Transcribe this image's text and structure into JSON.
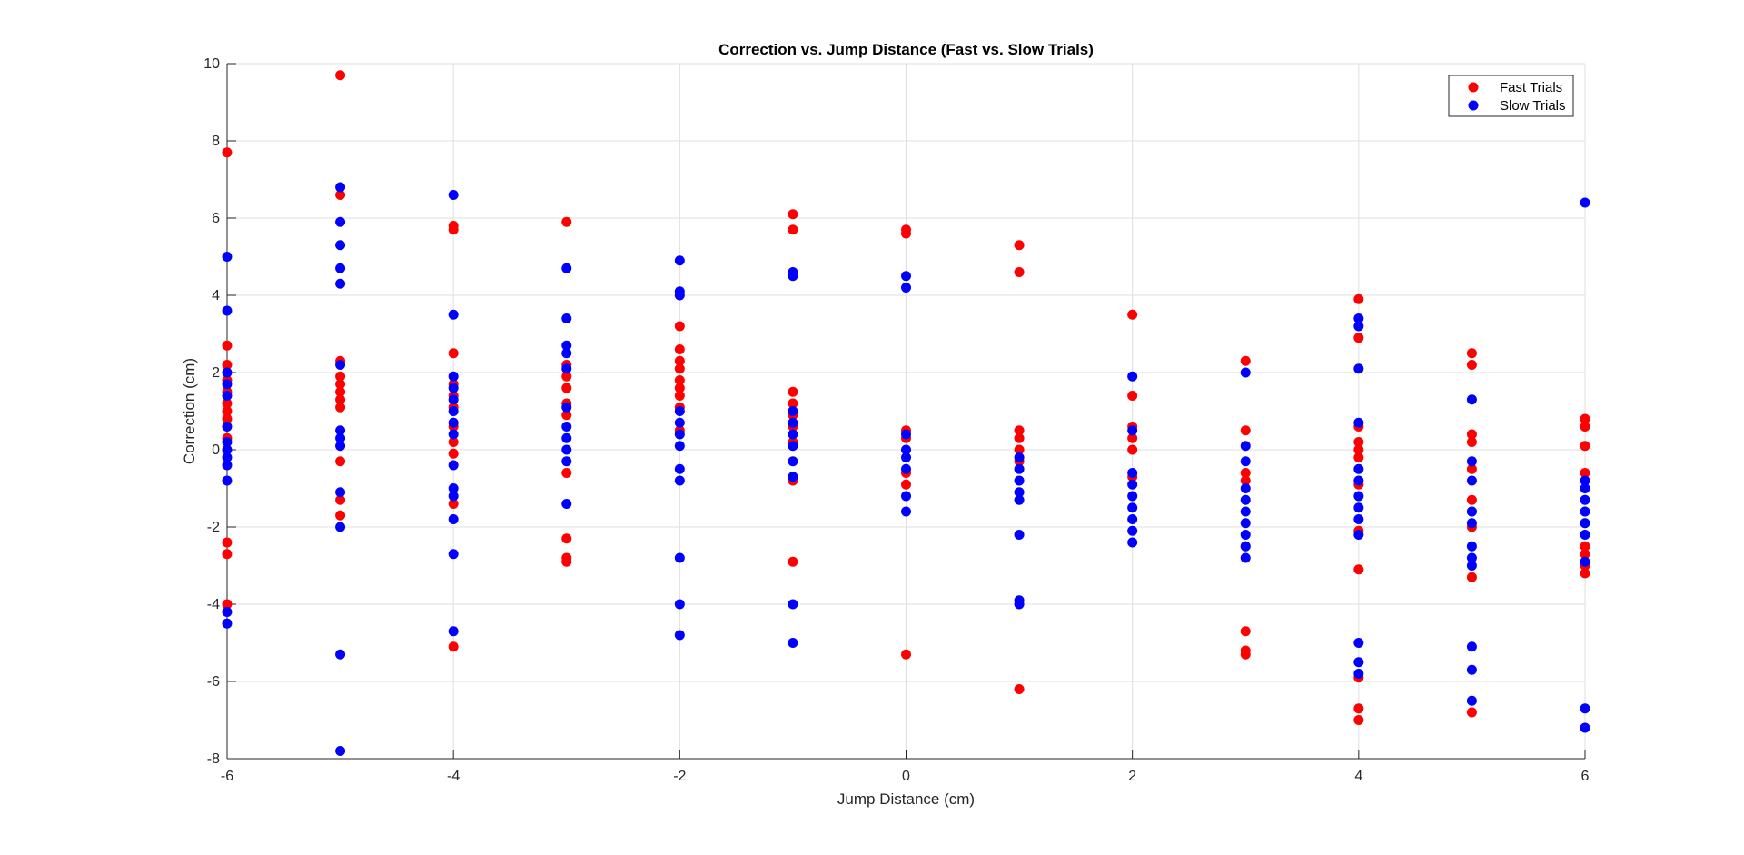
{
  "chart_data": {
    "type": "scatter",
    "title": "Correction vs. Jump Distance (Fast vs. Slow Trials)",
    "xlabel": "Jump Distance (cm)",
    "ylabel": "Correction (cm)",
    "xlim": [
      -6,
      6
    ],
    "ylim": [
      -8,
      10
    ],
    "xticks": [
      -6,
      -4,
      -2,
      0,
      2,
      4,
      6
    ],
    "yticks": [
      -8,
      -6,
      -4,
      -2,
      0,
      2,
      4,
      6,
      8,
      10
    ],
    "grid": true,
    "legend_position": "top-right",
    "series": [
      {
        "name": "Fast Trials",
        "color": "#ff0000",
        "points": [
          [
            -6,
            7.7
          ],
          [
            -6,
            2.7
          ],
          [
            -6,
            2.2
          ],
          [
            -6,
            1.8
          ],
          [
            -6,
            1.5
          ],
          [
            -6,
            1.2
          ],
          [
            -6,
            1.0
          ],
          [
            -6,
            0.8
          ],
          [
            -6,
            0.3
          ],
          [
            -6,
            -2.4
          ],
          [
            -6,
            -2.7
          ],
          [
            -6,
            -4.0
          ],
          [
            -5,
            9.7
          ],
          [
            -5,
            6.6
          ],
          [
            -5,
            2.3
          ],
          [
            -5,
            1.9
          ],
          [
            -5,
            1.7
          ],
          [
            -5,
            1.5
          ],
          [
            -5,
            1.3
          ],
          [
            -5,
            1.1
          ],
          [
            -5,
            -0.3
          ],
          [
            -5,
            -1.3
          ],
          [
            -5,
            -1.7
          ],
          [
            -4,
            5.8
          ],
          [
            -4,
            5.7
          ],
          [
            -4,
            2.5
          ],
          [
            -4,
            1.7
          ],
          [
            -4,
            1.4
          ],
          [
            -4,
            1.1
          ],
          [
            -4,
            0.6
          ],
          [
            -4,
            0.2
          ],
          [
            -4,
            -0.1
          ],
          [
            -4,
            -1.4
          ],
          [
            -4,
            -5.1
          ],
          [
            -3,
            5.9
          ],
          [
            -3,
            2.2
          ],
          [
            -3,
            1.9
          ],
          [
            -3,
            1.6
          ],
          [
            -3,
            1.2
          ],
          [
            -3,
            0.9
          ],
          [
            -3,
            -0.6
          ],
          [
            -3,
            -2.3
          ],
          [
            -3,
            -2.8
          ],
          [
            -3,
            -2.9
          ],
          [
            -2,
            3.2
          ],
          [
            -2,
            2.6
          ],
          [
            -2,
            2.3
          ],
          [
            -2,
            2.1
          ],
          [
            -2,
            1.8
          ],
          [
            -2,
            1.6
          ],
          [
            -2,
            1.4
          ],
          [
            -2,
            1.1
          ],
          [
            -2,
            0.5
          ],
          [
            -1,
            6.1
          ],
          [
            -1,
            5.7
          ],
          [
            -1,
            1.5
          ],
          [
            -1,
            1.2
          ],
          [
            -1,
            0.9
          ],
          [
            -1,
            0.6
          ],
          [
            -1,
            0.2
          ],
          [
            -1,
            -0.8
          ],
          [
            -1,
            -2.9
          ],
          [
            0,
            5.7
          ],
          [
            0,
            5.6
          ],
          [
            0,
            0.5
          ],
          [
            0,
            0.3
          ],
          [
            0,
            -0.6
          ],
          [
            0,
            -0.9
          ],
          [
            0,
            -5.3
          ],
          [
            1,
            5.3
          ],
          [
            1,
            4.6
          ],
          [
            1,
            0.5
          ],
          [
            1,
            0.3
          ],
          [
            1,
            0.0
          ],
          [
            1,
            -0.3
          ],
          [
            1,
            -6.2
          ],
          [
            2,
            3.5
          ],
          [
            2,
            1.4
          ],
          [
            2,
            0.6
          ],
          [
            2,
            0.3
          ],
          [
            2,
            0.0
          ],
          [
            2,
            -0.7
          ],
          [
            3,
            2.3
          ],
          [
            3,
            0.5
          ],
          [
            3,
            -0.6
          ],
          [
            3,
            -0.8
          ],
          [
            3,
            -2.5
          ],
          [
            3,
            -4.7
          ],
          [
            3,
            -5.2
          ],
          [
            3,
            -5.3
          ],
          [
            4,
            3.9
          ],
          [
            4,
            2.9
          ],
          [
            4,
            0.6
          ],
          [
            4,
            0.2
          ],
          [
            4,
            0.0
          ],
          [
            4,
            -0.2
          ],
          [
            4,
            -0.9
          ],
          [
            4,
            -2.1
          ],
          [
            4,
            -3.1
          ],
          [
            4,
            -5.9
          ],
          [
            4,
            -6.7
          ],
          [
            4,
            -7.0
          ],
          [
            5,
            2.5
          ],
          [
            5,
            2.2
          ],
          [
            5,
            0.4
          ],
          [
            5,
            0.2
          ],
          [
            5,
            -0.5
          ],
          [
            5,
            -1.3
          ],
          [
            5,
            -1.6
          ],
          [
            5,
            -2.0
          ],
          [
            5,
            -3.3
          ],
          [
            5,
            -6.8
          ],
          [
            6,
            0.8
          ],
          [
            6,
            0.6
          ],
          [
            6,
            0.1
          ],
          [
            6,
            -0.6
          ],
          [
            6,
            -2.5
          ],
          [
            6,
            -2.7
          ],
          [
            6,
            -3.0
          ],
          [
            6,
            -3.2
          ]
        ]
      },
      {
        "name": "Slow Trials",
        "color": "#0000ff",
        "points": [
          [
            -6,
            5.0
          ],
          [
            -6,
            3.6
          ],
          [
            -6,
            2.0
          ],
          [
            -6,
            1.7
          ],
          [
            -6,
            1.4
          ],
          [
            -6,
            0.6
          ],
          [
            -6,
            0.2
          ],
          [
            -6,
            0.0
          ],
          [
            -6,
            -0.2
          ],
          [
            -6,
            -0.4
          ],
          [
            -6,
            -0.8
          ],
          [
            -6,
            -4.2
          ],
          [
            -6,
            -4.5
          ],
          [
            -5,
            6.8
          ],
          [
            -5,
            5.9
          ],
          [
            -5,
            5.3
          ],
          [
            -5,
            4.7
          ],
          [
            -5,
            4.3
          ],
          [
            -5,
            2.2
          ],
          [
            -5,
            0.5
          ],
          [
            -5,
            0.3
          ],
          [
            -5,
            0.1
          ],
          [
            -5,
            -1.1
          ],
          [
            -5,
            -2.0
          ],
          [
            -5,
            -5.3
          ],
          [
            -5,
            -7.8
          ],
          [
            -4,
            6.6
          ],
          [
            -4,
            3.5
          ],
          [
            -4,
            1.9
          ],
          [
            -4,
            1.6
          ],
          [
            -4,
            1.3
          ],
          [
            -4,
            1.0
          ],
          [
            -4,
            0.7
          ],
          [
            -4,
            0.4
          ],
          [
            -4,
            -0.4
          ],
          [
            -4,
            -1.0
          ],
          [
            -4,
            -1.2
          ],
          [
            -4,
            -1.8
          ],
          [
            -4,
            -2.7
          ],
          [
            -4,
            -4.7
          ],
          [
            -3,
            4.7
          ],
          [
            -3,
            3.4
          ],
          [
            -3,
            2.7
          ],
          [
            -3,
            2.5
          ],
          [
            -3,
            2.1
          ],
          [
            -3,
            1.1
          ],
          [
            -3,
            0.6
          ],
          [
            -3,
            0.3
          ],
          [
            -3,
            0.0
          ],
          [
            -3,
            -0.3
          ],
          [
            -3,
            -1.4
          ],
          [
            -2,
            4.9
          ],
          [
            -2,
            4.1
          ],
          [
            -2,
            4.0
          ],
          [
            -2,
            1.0
          ],
          [
            -2,
            0.7
          ],
          [
            -2,
            0.4
          ],
          [
            -2,
            0.1
          ],
          [
            -2,
            -0.5
          ],
          [
            -2,
            -0.8
          ],
          [
            -2,
            -2.8
          ],
          [
            -2,
            -4.0
          ],
          [
            -2,
            -4.8
          ],
          [
            -1,
            4.6
          ],
          [
            -1,
            4.5
          ],
          [
            -1,
            1.0
          ],
          [
            -1,
            0.7
          ],
          [
            -1,
            0.4
          ],
          [
            -1,
            0.1
          ],
          [
            -1,
            -0.3
          ],
          [
            -1,
            -0.7
          ],
          [
            -1,
            -4.0
          ],
          [
            -1,
            -5.0
          ],
          [
            0,
            4.5
          ],
          [
            0,
            4.2
          ],
          [
            0,
            0.4
          ],
          [
            0,
            0.0
          ],
          [
            0,
            -0.2
          ],
          [
            0,
            -0.5
          ],
          [
            0,
            -1.2
          ],
          [
            0,
            -1.6
          ],
          [
            1,
            -0.2
          ],
          [
            1,
            -0.5
          ],
          [
            1,
            -0.8
          ],
          [
            1,
            -1.1
          ],
          [
            1,
            -1.3
          ],
          [
            1,
            -2.2
          ],
          [
            1,
            -3.9
          ],
          [
            1,
            -4.0
          ],
          [
            2,
            1.9
          ],
          [
            2,
            0.5
          ],
          [
            2,
            -0.6
          ],
          [
            2,
            -0.9
          ],
          [
            2,
            -1.2
          ],
          [
            2,
            -1.5
          ],
          [
            2,
            -1.8
          ],
          [
            2,
            -2.1
          ],
          [
            2,
            -2.4
          ],
          [
            3,
            2.0
          ],
          [
            3,
            0.1
          ],
          [
            3,
            -0.3
          ],
          [
            3,
            -1.0
          ],
          [
            3,
            -1.3
          ],
          [
            3,
            -1.6
          ],
          [
            3,
            -1.9
          ],
          [
            3,
            -2.2
          ],
          [
            3,
            -2.5
          ],
          [
            3,
            -2.8
          ],
          [
            4,
            3.4
          ],
          [
            4,
            3.2
          ],
          [
            4,
            2.1
          ],
          [
            4,
            0.7
          ],
          [
            4,
            -0.5
          ],
          [
            4,
            -0.8
          ],
          [
            4,
            -1.2
          ],
          [
            4,
            -1.5
          ],
          [
            4,
            -1.8
          ],
          [
            4,
            -2.2
          ],
          [
            4,
            -5.0
          ],
          [
            4,
            -5.5
          ],
          [
            4,
            -5.8
          ],
          [
            5,
            1.3
          ],
          [
            5,
            -0.3
          ],
          [
            5,
            -0.8
          ],
          [
            5,
            -1.6
          ],
          [
            5,
            -1.9
          ],
          [
            5,
            -2.5
          ],
          [
            5,
            -2.8
          ],
          [
            5,
            -3.0
          ],
          [
            5,
            -5.1
          ],
          [
            5,
            -5.7
          ],
          [
            5,
            -6.5
          ],
          [
            6,
            6.4
          ],
          [
            6,
            -0.8
          ],
          [
            6,
            -1.0
          ],
          [
            6,
            -1.3
          ],
          [
            6,
            -1.6
          ],
          [
            6,
            -1.9
          ],
          [
            6,
            -2.2
          ],
          [
            6,
            -2.9
          ],
          [
            6,
            -6.7
          ],
          [
            6,
            -7.2
          ]
        ]
      }
    ]
  }
}
